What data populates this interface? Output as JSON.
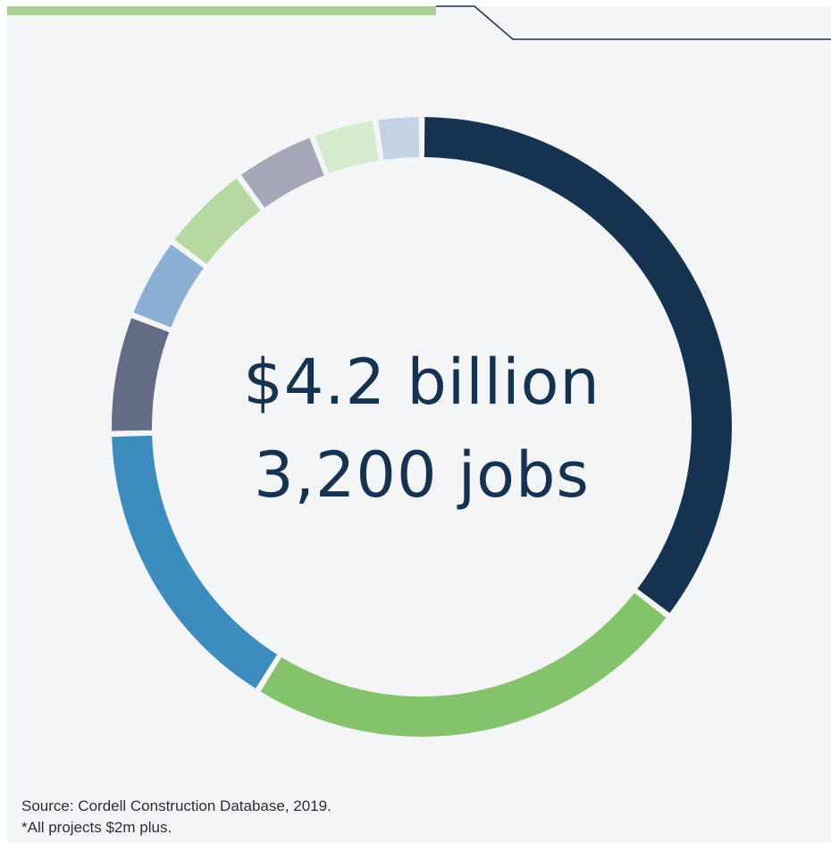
{
  "chart_data": {
    "type": "pie",
    "donut": true,
    "slices": [
      {
        "value": 37.0,
        "color": "#153350"
      },
      {
        "value": 24.5,
        "color": "#84c36b"
      },
      {
        "value": 16.5,
        "color": "#3d8cbf"
      },
      {
        "value": 6.5,
        "color": "#646b84"
      },
      {
        "value": 4.5,
        "color": "#8cb0d4"
      },
      {
        "value": 5.0,
        "color": "#b6d9a1"
      },
      {
        "value": 4.5,
        "color": "#a5a7b8"
      },
      {
        "value": 3.5,
        "color": "#d6eacd"
      },
      {
        "value": 2.5,
        "color": "#c3d3e5"
      }
    ],
    "center_lines": [
      "$4.2 billion",
      "3,200 jobs"
    ]
  },
  "footer": {
    "source": "Source: Cordell Construction Database, 2019.",
    "note": "*All projects $2m plus."
  },
  "colors": {
    "accent_bar": "#a9d191",
    "rule_line": "#153350",
    "background": "#f3f5f7"
  }
}
